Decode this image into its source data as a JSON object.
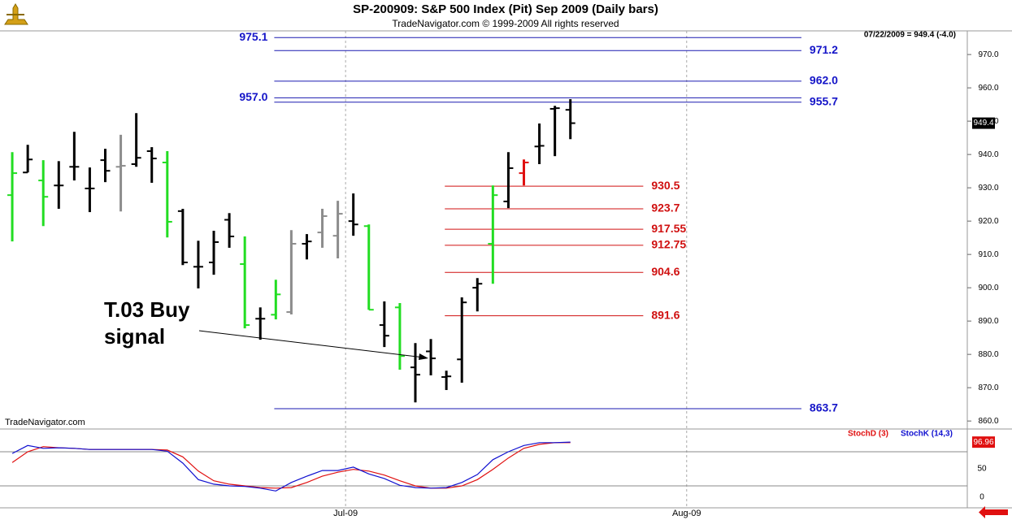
{
  "chart_data": [
    {
      "type": "ohlc",
      "title": "SP-200909:  S&P 500 Index (Pit) Sep 2009  (Daily bars)",
      "subtitle": "TradeNavigator.com © 1999-2009 All rights reserved",
      "info": "07/22/2009 = 949.4 (-4.0)",
      "source": "TradeNavigator.com",
      "categories": [
        null,
        null,
        null,
        null,
        null,
        null,
        null,
        null,
        null,
        null,
        null,
        null,
        null,
        null,
        null,
        null,
        null,
        null,
        null,
        null,
        null,
        null,
        null,
        null,
        null,
        null,
        null,
        null,
        null,
        null,
        null,
        null,
        null,
        null,
        null,
        null,
        null
      ],
      "open": [
        927.8,
        934.6,
        932.2,
        930.7,
        936.3,
        929.8,
        938.3,
        936.3,
        937.1,
        941.0,
        937.6,
        923.0,
        906.3,
        907.6,
        920.4,
        907.1,
        890.7,
        891.9,
        892.7,
        913.2,
        916.6,
        915.6,
        920.0,
        918.5,
        888.8,
        894.1,
        876.1,
        880.9,
        873.2,
        878.5,
        900.0,
        913.2,
        925.9,
        934.4,
        942.4,
        953.7,
        953.4
      ],
      "high": [
        940.7,
        942.9,
        938.3,
        938.0,
        946.8,
        936.1,
        941.7,
        945.9,
        952.4,
        942.2,
        941.0,
        923.7,
        914.1,
        917.1,
        922.4,
        915.4,
        894.1,
        902.4,
        917.3,
        916.1,
        923.7,
        926.1,
        928.3,
        919.0,
        895.9,
        895.4,
        883.4,
        884.6,
        875.1,
        897.1,
        902.9,
        930.7,
        940.7,
        938.5,
        949.3,
        954.6,
        956.6
      ],
      "low": [
        913.9,
        934.6,
        918.5,
        923.7,
        932.2,
        922.7,
        931.7,
        922.9,
        936.3,
        931.5,
        915.1,
        906.8,
        899.8,
        903.9,
        912.0,
        887.8,
        884.4,
        890.5,
        892.0,
        908.5,
        912.0,
        908.8,
        915.6,
        893.4,
        882.2,
        875.4,
        865.6,
        873.7,
        869.3,
        871.5,
        892.9,
        901.2,
        923.9,
        930.7,
        937.1,
        939.5,
        944.6
      ],
      "close": [
        934.4,
        938.5,
        927.3,
        930.7,
        936.3,
        929.8,
        935.1,
        936.6,
        939.0,
        938.8,
        919.8,
        907.6,
        906.3,
        913.7,
        915.4,
        888.8,
        890.7,
        898.0,
        913.2,
        913.9,
        921.5,
        922.2,
        919.0,
        893.4,
        885.6,
        879.5,
        873.9,
        878.8,
        873.4,
        895.6,
        901.2,
        927.8,
        935.9,
        937.6,
        942.6,
        953.9,
        949.4
      ],
      "colors": [
        "#22dd22",
        "#000000",
        "#22dd22",
        "#000000",
        "#000000",
        "#000000",
        "#000000",
        "#8c8c8c",
        "#000000",
        "#000000",
        "#22dd22",
        "#000000",
        "#000000",
        "#000000",
        "#000000",
        "#22dd22",
        "#000000",
        "#22dd22",
        "#8c8c8c",
        "#000000",
        "#8c8c8c",
        "#8c8c8c",
        "#000000",
        "#22dd22",
        "#000000",
        "#22dd22",
        "#000000",
        "#000000",
        "#000000",
        "#000000",
        "#000000",
        "#22dd22",
        "#000000",
        "#e01010",
        "#000000",
        "#000000",
        "#000000"
      ],
      "ylim": [
        857.6,
        977.1
      ],
      "yticks": [
        {
          "value": 860,
          "label": "860.0"
        },
        {
          "value": 870,
          "label": "870.0"
        },
        {
          "value": 880,
          "label": "880.0"
        },
        {
          "value": 890,
          "label": "890.0"
        },
        {
          "value": 900,
          "label": "900.0"
        },
        {
          "value": 910,
          "label": "910.0"
        },
        {
          "value": 920,
          "label": "920.0"
        },
        {
          "value": 930,
          "label": "930.0"
        },
        {
          "value": 940,
          "label": "940.0"
        },
        {
          "value": 950,
          "label": "950.0"
        },
        {
          "value": 960,
          "label": "960.0"
        },
        {
          "value": 970,
          "label": "970.0"
        }
      ],
      "levels": [
        {
          "value": 975.1,
          "color": "#1a1ab0",
          "label_side": "left"
        },
        {
          "value": 971.2,
          "color": "#1a1ab0",
          "label_side": "right"
        },
        {
          "value": 962.0,
          "label": "962.0",
          "color": "#1a1ab0",
          "label_side": "right"
        },
        {
          "value": 957.0,
          "label": "957.0",
          "color": "#1a1ab0",
          "label_side": "left"
        },
        {
          "value": 955.7,
          "color": "#1a1ab0",
          "label_side": "right"
        },
        {
          "value": 863.7,
          "color": "#1a1ab0",
          "label_side": "right"
        },
        {
          "value": 930.5,
          "color": "#d01010",
          "label_side": "right"
        },
        {
          "value": 923.7,
          "color": "#d01010",
          "label_side": "right"
        },
        {
          "value": 917.55,
          "color": "#d01010",
          "label_side": "right"
        },
        {
          "value": 912.75,
          "color": "#d01010",
          "label_side": "right"
        },
        {
          "value": 904.6,
          "color": "#d01010",
          "label_side": "right"
        },
        {
          "value": 891.6,
          "color": "#d01010",
          "label_side": "right"
        }
      ],
      "annotation": [
        "T.03 Buy",
        "signal"
      ]
    },
    {
      "type": "line",
      "categories": [
        null,
        null,
        null,
        null,
        null,
        null,
        null,
        null,
        null,
        null,
        null,
        null,
        null,
        null,
        null,
        null,
        null,
        null,
        null,
        null,
        null,
        null,
        null,
        null,
        null,
        null,
        null,
        null,
        null,
        null,
        null,
        null,
        null,
        null,
        null,
        null,
        null
      ],
      "series": [
        {
          "name": "StochD (3)",
          "color": "#e01010",
          "values": [
            61,
            80,
            89,
            87,
            86,
            84,
            84,
            84,
            84,
            84,
            83,
            71,
            46,
            29,
            23,
            20,
            17,
            16,
            17,
            26,
            37,
            44,
            49,
            46,
            39,
            29,
            20,
            16,
            16,
            20,
            31,
            49,
            69,
            86,
            93,
            96,
            96
          ]
        },
        {
          "name": "StochK (14,3)",
          "color": "#1010d0",
          "values": [
            77,
            91,
            86,
            87,
            86,
            84,
            84,
            84,
            84,
            84,
            81,
            60,
            31,
            23,
            20,
            19,
            16,
            11,
            26,
            37,
            47,
            47,
            53,
            41,
            33,
            21,
            17,
            16,
            17,
            26,
            40,
            66,
            80,
            91,
            96,
            96,
            96.96
          ]
        }
      ],
      "ylim": [
        -18.6,
        120
      ],
      "yticks": [
        0,
        50
      ],
      "hlines": [
        20,
        80
      ],
      "xlim": [
        -0.79,
        61.6
      ],
      "xticks": [
        {
          "value": 21.5,
          "label": "Jul-09"
        },
        {
          "value": 43.5,
          "label": "Aug-09"
        }
      ]
    }
  ]
}
